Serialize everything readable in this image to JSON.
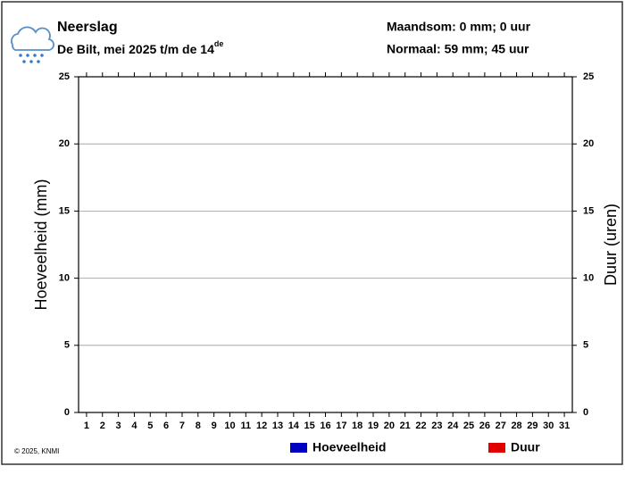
{
  "chart_data": {
    "type": "bar",
    "title": "Neerslag",
    "subtitle": "De Bilt, mei 2025 t/m de 14",
    "subtitle_sup": "de",
    "annotations": [
      "Maandsom: 0 mm; 0 uur",
      "Normaal: 59 mm; 45 uur"
    ],
    "copyright": "© 2025, KNMI",
    "ylabel": "Hoeveelheid (mm)",
    "y2label": "Duur (uren)",
    "categories": [
      "1",
      "2",
      "3",
      "4",
      "5",
      "6",
      "7",
      "8",
      "9",
      "10",
      "11",
      "12",
      "13",
      "14",
      "15",
      "16",
      "17",
      "18",
      "19",
      "20",
      "21",
      "22",
      "23",
      "24",
      "25",
      "26",
      "27",
      "28",
      "29",
      "30",
      "31"
    ],
    "series": [
      {
        "name": "Hoeveelheid",
        "color": "#0000c0",
        "values": [
          0,
          0,
          0,
          0,
          0,
          0,
          0,
          0,
          0,
          0,
          0,
          0,
          0,
          0,
          null,
          null,
          null,
          null,
          null,
          null,
          null,
          null,
          null,
          null,
          null,
          null,
          null,
          null,
          null,
          null,
          null
        ]
      },
      {
        "name": "Duur",
        "color": "#e00000",
        "axis": "y2",
        "values": [
          0,
          0,
          0,
          0,
          0,
          0,
          0,
          0,
          0,
          0,
          0,
          0,
          0,
          0,
          null,
          null,
          null,
          null,
          null,
          null,
          null,
          null,
          null,
          null,
          null,
          null,
          null,
          null,
          null,
          null,
          null
        ]
      }
    ],
    "ylim": [
      0,
      25
    ],
    "yticks": [
      0,
      5,
      10,
      15,
      20,
      25
    ],
    "y2lim": [
      0,
      25
    ],
    "y2ticks": [
      0,
      5,
      10,
      15,
      20,
      25
    ],
    "grid": true
  }
}
